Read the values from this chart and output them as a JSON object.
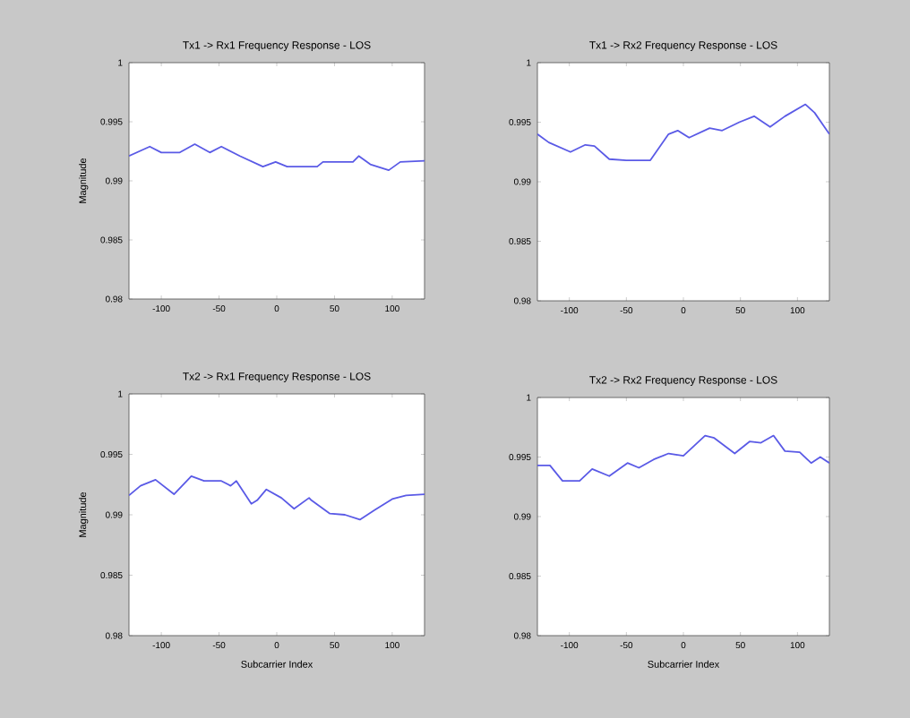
{
  "chart_data": [
    {
      "type": "line",
      "title": "Tx1 -> Rx1 Frequency Response - LOS",
      "ylabel": "Magnitude",
      "xlim": [
        -128,
        128
      ],
      "ylim": [
        0.98,
        1
      ],
      "xticks": [
        -100,
        -50,
        0,
        50,
        100
      ],
      "yticks": [
        0.98,
        0.985,
        0.99,
        0.995,
        1
      ],
      "x": [
        -128,
        -110,
        -100,
        -84,
        -71,
        -58,
        -48,
        -32,
        -12,
        -1,
        9,
        35,
        40,
        66,
        71,
        81,
        97,
        107,
        128
      ],
      "series": [
        {
          "color": "#5a5ae6",
          "values": [
            0.9921,
            0.9929,
            0.9924,
            0.9924,
            0.9931,
            0.9924,
            0.9929,
            0.9921,
            0.9912,
            0.9916,
            0.9912,
            0.9912,
            0.9916,
            0.9916,
            0.9921,
            0.9914,
            0.9909,
            0.9916,
            0.9917
          ]
        }
      ]
    },
    {
      "type": "line",
      "title": "Tx1 -> Rx2 Frequency Response - LOS",
      "xlim": [
        -128,
        128
      ],
      "ylim": [
        0.98,
        1
      ],
      "xticks": [
        -100,
        -50,
        0,
        50,
        100
      ],
      "yticks": [
        0.98,
        0.985,
        0.99,
        0.995,
        1
      ],
      "x": [
        -128,
        -118,
        -99,
        -86,
        -78,
        -65,
        -50,
        -29,
        -13,
        -5,
        5,
        23,
        34,
        49,
        62,
        76,
        89,
        107,
        115,
        128
      ],
      "series": [
        {
          "color": "#5a5ae6",
          "values": [
            0.994,
            0.9933,
            0.9925,
            0.9931,
            0.993,
            0.9919,
            0.9918,
            0.9918,
            0.994,
            0.9943,
            0.9937,
            0.9945,
            0.9943,
            0.995,
            0.9955,
            0.9946,
            0.9955,
            0.9965,
            0.9958,
            0.994
          ]
        }
      ]
    },
    {
      "type": "line",
      "title": "Tx2 -> Rx1 Frequency Response - LOS",
      "ylabel": "Magnitude",
      "xlabel": "Subcarrier Index",
      "xlim": [
        -128,
        128
      ],
      "ylim": [
        0.98,
        1
      ],
      "xticks": [
        -100,
        -50,
        0,
        50,
        100
      ],
      "yticks": [
        0.98,
        0.985,
        0.99,
        0.995,
        1
      ],
      "x": [
        -128,
        -118,
        -105,
        -89,
        -74,
        -63,
        -48,
        -40,
        -35,
        -22,
        -17,
        -9,
        4,
        15,
        28,
        30,
        46,
        59,
        72,
        85,
        100,
        112,
        128
      ],
      "series": [
        {
          "color": "#5a5ae6",
          "values": [
            0.9916,
            0.9924,
            0.9929,
            0.9917,
            0.9932,
            0.9928,
            0.9928,
            0.9924,
            0.9928,
            0.9909,
            0.9912,
            0.9921,
            0.9914,
            0.9905,
            0.9914,
            0.9912,
            0.9901,
            0.99,
            0.9896,
            0.9904,
            0.9913,
            0.9916,
            0.9917
          ]
        }
      ]
    },
    {
      "type": "line",
      "title": "Tx2 -> Rx2 Frequency Response - LOS",
      "xlabel": "Subcarrier Index",
      "xlim": [
        -128,
        128
      ],
      "ylim": [
        0.98,
        1
      ],
      "xticks": [
        -100,
        -50,
        0,
        50,
        100
      ],
      "yticks": [
        0.98,
        0.985,
        0.99,
        0.995,
        1
      ],
      "x": [
        -128,
        -117,
        -106,
        -91,
        -80,
        -65,
        -49,
        -39,
        -26,
        -13,
        0,
        19,
        27,
        45,
        58,
        68,
        79,
        89,
        102,
        112,
        120,
        128
      ],
      "series": [
        {
          "color": "#5a5ae6",
          "values": [
            0.9943,
            0.9943,
            0.993,
            0.993,
            0.994,
            0.9934,
            0.9945,
            0.9941,
            0.9948,
            0.9953,
            0.9951,
            0.9968,
            0.9966,
            0.9953,
            0.9963,
            0.9962,
            0.9968,
            0.9955,
            0.9954,
            0.9945,
            0.995,
            0.9945
          ]
        }
      ]
    }
  ]
}
